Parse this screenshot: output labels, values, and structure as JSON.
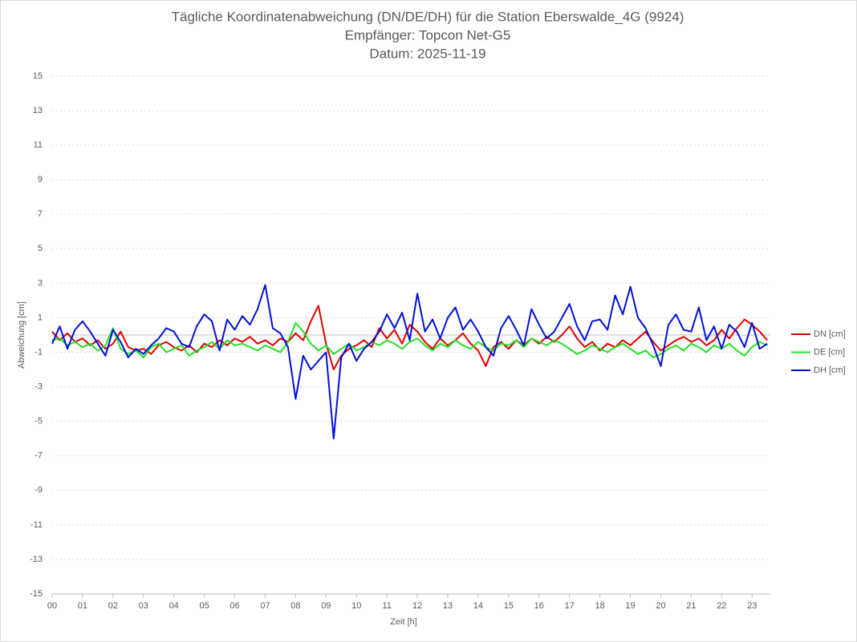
{
  "chart_data": {
    "type": "line",
    "title": "Tägliche Koordinatenabweichung (DN/DE/DH) für die Station Eberswalde_4G (9924)",
    "subtitle": "Empfänger: Topcon Net-G5",
    "date_line": "Datum: 2025-11-19",
    "x_label": "Zeit [h]",
    "y_label": "Abweichung [cm]",
    "x": [
      0,
      0.25,
      0.5,
      0.75,
      1,
      1.25,
      1.5,
      1.75,
      2,
      2.25,
      2.5,
      2.75,
      3,
      3.25,
      3.5,
      3.75,
      4,
      4.25,
      4.5,
      4.75,
      5,
      5.25,
      5.5,
      5.75,
      6,
      6.25,
      6.5,
      6.75,
      7,
      7.25,
      7.5,
      7.75,
      8,
      8.25,
      8.5,
      8.75,
      9,
      9.25,
      9.5,
      9.75,
      10,
      10.25,
      10.5,
      10.75,
      11,
      11.25,
      11.5,
      11.75,
      12,
      12.25,
      12.5,
      12.75,
      13,
      13.25,
      13.5,
      13.75,
      14,
      14.25,
      14.5,
      14.75,
      15,
      15.25,
      15.5,
      15.75,
      16,
      16.25,
      16.5,
      16.75,
      17,
      17.25,
      17.5,
      17.75,
      18,
      18.25,
      18.5,
      18.75,
      19,
      19.25,
      19.5,
      19.75,
      20,
      20.25,
      20.5,
      20.75,
      21,
      21.25,
      21.5,
      21.75,
      22,
      22.25,
      22.5,
      22.75,
      23,
      23.25,
      23.5
    ],
    "series": [
      {
        "name": "DN [cm]",
        "color": "#e00000",
        "values": [
          0.2,
          -0.3,
          0.1,
          -0.4,
          -0.2,
          -0.6,
          -0.3,
          -0.8,
          -0.5,
          0.2,
          -0.7,
          -0.9,
          -0.8,
          -1.1,
          -0.6,
          -0.4,
          -0.7,
          -0.9,
          -0.6,
          -1.0,
          -0.5,
          -0.7,
          -0.3,
          -0.6,
          -0.2,
          -0.4,
          -0.1,
          -0.5,
          -0.3,
          -0.6,
          -0.2,
          -0.4,
          0.1,
          -0.3,
          0.8,
          1.7,
          -0.5,
          -2.0,
          -1.2,
          -0.8,
          -0.6,
          -0.3,
          -0.7,
          0.4,
          -0.2,
          0.3,
          -0.5,
          0.6,
          0.2,
          -0.4,
          -0.8,
          -0.2,
          -0.6,
          -0.3,
          0.1,
          -0.5,
          -0.9,
          -1.8,
          -0.7,
          -0.4,
          -0.8,
          -0.3,
          -0.6,
          -0.2,
          -0.5,
          -0.1,
          -0.4,
          0.0,
          0.5,
          -0.2,
          -0.7,
          -0.4,
          -0.9,
          -0.5,
          -0.7,
          -0.3,
          -0.6,
          -0.2,
          0.2,
          -0.4,
          -0.9,
          -0.6,
          -0.3,
          -0.1,
          -0.4,
          -0.2,
          -0.6,
          -0.3,
          0.3,
          -0.2,
          0.4,
          0.9,
          0.6,
          0.2,
          -0.3
        ]
      },
      {
        "name": "DE [cm]",
        "color": "#22e022",
        "values": [
          -0.3,
          -0.2,
          -0.6,
          -0.4,
          -0.7,
          -0.5,
          -0.9,
          -0.6,
          0.4,
          -0.8,
          -1.1,
          -0.9,
          -1.3,
          -0.7,
          -0.5,
          -1.0,
          -0.8,
          -0.6,
          -1.2,
          -0.9,
          -0.7,
          -0.4,
          -0.8,
          -0.3,
          -0.6,
          -0.5,
          -0.7,
          -0.9,
          -0.6,
          -0.8,
          -1.0,
          -0.4,
          0.7,
          0.2,
          -0.5,
          -0.9,
          -0.6,
          -1.1,
          -0.8,
          -0.5,
          -0.9,
          -0.7,
          -0.4,
          -0.6,
          -0.3,
          -0.5,
          -0.8,
          -0.4,
          -0.2,
          -0.6,
          -0.9,
          -0.5,
          -0.7,
          -0.3,
          -0.6,
          -0.8,
          -0.4,
          -0.7,
          -0.9,
          -0.5,
          -0.6,
          -0.3,
          -0.7,
          -0.2,
          -0.4,
          -0.6,
          -0.3,
          -0.5,
          -0.8,
          -1.1,
          -0.9,
          -0.6,
          -0.8,
          -1.0,
          -0.7,
          -0.5,
          -0.8,
          -1.1,
          -0.9,
          -1.3,
          -1.1,
          -0.8,
          -0.6,
          -0.9,
          -0.5,
          -0.7,
          -1.0,
          -0.6,
          -0.8,
          -0.5,
          -0.9,
          -1.2,
          -0.7,
          -0.4,
          -0.6
        ]
      },
      {
        "name": "DH [cm]",
        "color": "#0010d8",
        "values": [
          -0.5,
          0.5,
          -0.8,
          0.3,
          0.8,
          0.2,
          -0.5,
          -1.2,
          0.3,
          -0.4,
          -1.3,
          -0.8,
          -1.1,
          -0.6,
          -0.2,
          0.4,
          0.2,
          -0.5,
          -0.7,
          0.5,
          1.2,
          0.8,
          -0.9,
          0.9,
          0.3,
          1.1,
          0.6,
          1.5,
          2.9,
          0.4,
          0.1,
          -0.7,
          -3.7,
          -1.2,
          -2.0,
          -1.5,
          -1.0,
          -6.0,
          -1.3,
          -0.5,
          -1.5,
          -0.8,
          -0.4,
          0.2,
          1.2,
          0.4,
          1.3,
          -0.3,
          2.4,
          0.2,
          0.9,
          -0.2,
          1.0,
          1.6,
          0.3,
          0.9,
          0.2,
          -0.7,
          -1.2,
          0.4,
          1.1,
          0.3,
          -0.6,
          1.5,
          0.6,
          -0.2,
          0.2,
          1.0,
          1.8,
          0.5,
          -0.3,
          0.8,
          0.9,
          0.3,
          2.3,
          1.2,
          2.8,
          1.0,
          0.4,
          -0.6,
          -1.8,
          0.6,
          1.2,
          0.3,
          0.2,
          1.6,
          -0.3,
          0.5,
          -0.8,
          0.6,
          0.2,
          -0.7,
          0.7,
          -0.8,
          -0.5
        ]
      }
    ],
    "xlim": [
      0,
      23.6
    ],
    "xticks": [
      {
        "value": 0,
        "label": "00"
      },
      {
        "value": 1,
        "label": "01"
      },
      {
        "value": 2,
        "label": "02"
      },
      {
        "value": 3,
        "label": "03"
      },
      {
        "value": 4,
        "label": "04"
      },
      {
        "value": 5,
        "label": "05"
      },
      {
        "value": 6,
        "label": "06"
      },
      {
        "value": 7,
        "label": "07"
      },
      {
        "value": 8,
        "label": "08"
      },
      {
        "value": 9,
        "label": "09"
      },
      10,
      11,
      12,
      13,
      14,
      15,
      16,
      17,
      18,
      19,
      20,
      21,
      22,
      23
    ],
    "ylim": [
      -15,
      15
    ],
    "yticks": [
      -15,
      -13,
      -11,
      -9,
      -7,
      -5,
      -3,
      -1,
      1,
      3,
      5,
      7,
      9,
      11,
      13,
      15
    ],
    "grid": true,
    "legend": "right"
  }
}
